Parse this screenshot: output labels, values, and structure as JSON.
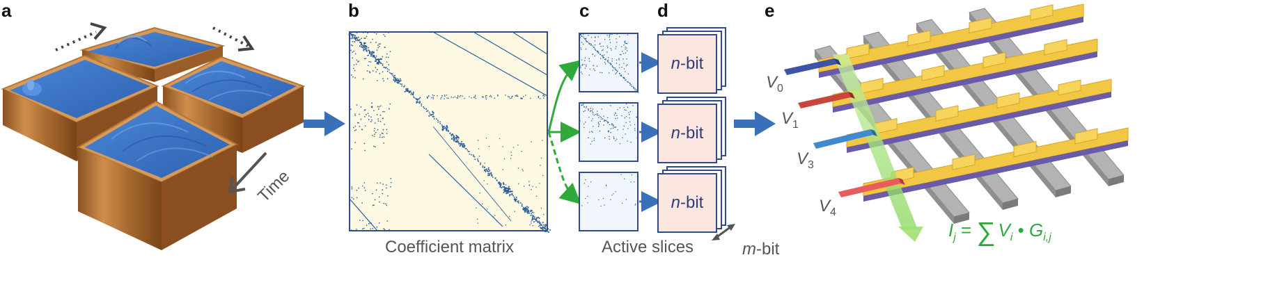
{
  "panels": {
    "a": {
      "label": "a",
      "time_label": "Time"
    },
    "b": {
      "label": "b",
      "caption": "Coefficient matrix"
    },
    "c": {
      "label": "c",
      "caption": "Active slices"
    },
    "d": {
      "label": "d",
      "slice_text": "n-bit",
      "slice_text_n": "n",
      "slice_text_rest": "-bit",
      "depth_label": "m-bit",
      "depth_label_m": "m",
      "depth_label_rest": "-bit"
    },
    "e": {
      "label": "e",
      "voltages": [
        {
          "letter": "V",
          "sub": "0",
          "color": "#3e52a8"
        },
        {
          "letter": "V",
          "sub": "1",
          "color": "#c8463c"
        },
        {
          "letter": "V",
          "sub": "3",
          "color": "#3f8ad0"
        },
        {
          "letter": "V",
          "sub": "4",
          "color": "#e85c5c"
        }
      ],
      "equation": {
        "lhs": "I",
        "lhs_sub": "j",
        "eq": " = ",
        "sum": "∑",
        "term": "V",
        "term_sub": "i",
        "dot": " • ",
        "g": "G",
        "g_sub": "i,j"
      }
    }
  },
  "colors": {
    "arrow_blue": "#3a70b8",
    "green": "#2eaa3a",
    "matrix_bg": "#fdf9e3",
    "matrix_border": "#2f4a8a",
    "slice_bg": "#f0f6fb",
    "nbit_bg": "#fbe6e0",
    "water": "#3c74c4",
    "wood": "#c88848",
    "crossbar_gold": "#f2c744",
    "crossbar_gray": "#a9a9a9"
  }
}
